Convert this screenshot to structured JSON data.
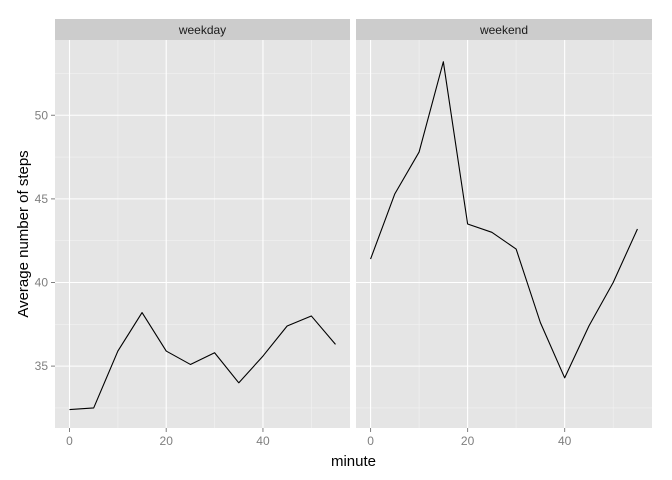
{
  "chart_data": {
    "type": "line",
    "xlabel": "minute",
    "ylabel": "Average number of steps",
    "xlim": [
      -3,
      58
    ],
    "ylim": [
      31.3,
      54.5
    ],
    "x_ticks": [
      0,
      20,
      40
    ],
    "x_tick_labels": [
      "0",
      "20",
      "40"
    ],
    "y_ticks": [
      35,
      40,
      45,
      50
    ],
    "y_tick_labels": [
      "35",
      "40",
      "45",
      "50"
    ],
    "x_minor_ticks": [
      10,
      30,
      50
    ],
    "y_minor_ticks": [
      32.5,
      37.5,
      42.5,
      47.5,
      52.5
    ],
    "grid": true,
    "legend": false,
    "colors": {
      "panel_background": "#e5e5e5",
      "strip_background": "#cccccc",
      "grid_major": "#ffffff",
      "grid_minor": "#f2f2f2",
      "line": "#000000",
      "tick_label": "#7f7f7f"
    },
    "facets": [
      {
        "label": "weekday",
        "x": [
          0,
          5,
          10,
          15,
          20,
          25,
          30,
          35,
          40,
          45,
          50,
          55
        ],
        "values": [
          32.4,
          32.5,
          35.9,
          38.2,
          35.9,
          35.1,
          35.8,
          34.0,
          35.6,
          37.4,
          38.0,
          36.3
        ]
      },
      {
        "label": "weekend",
        "x": [
          0,
          5,
          10,
          15,
          20,
          25,
          30,
          35,
          40,
          45,
          50,
          55
        ],
        "values": [
          41.4,
          45.3,
          47.8,
          53.2,
          43.5,
          43.0,
          42.0,
          37.6,
          34.3,
          37.4,
          40.0,
          43.2
        ]
      }
    ]
  }
}
